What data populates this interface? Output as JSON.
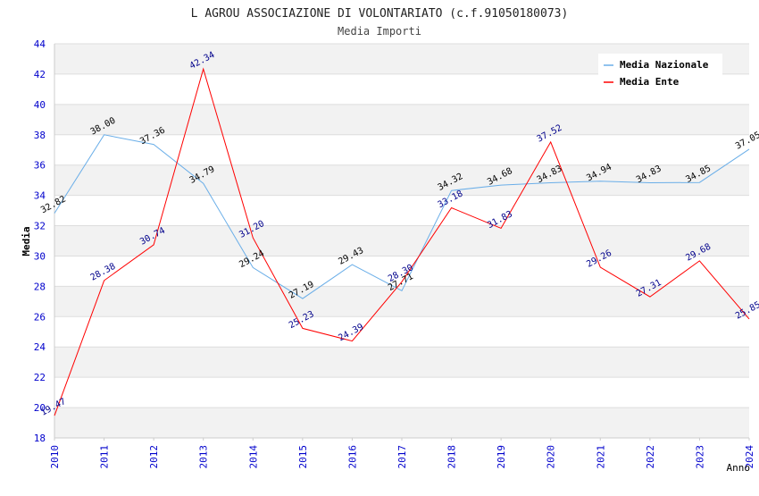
{
  "chart_data": {
    "type": "line",
    "title": "L AGROU ASSOCIAZIONE DI VOLONTARIATO (c.f.91050180073)",
    "subtitle": "Media Importi",
    "xlabel": "Anno",
    "ylabel": "Media",
    "ylim": [
      18,
      44
    ],
    "yticks": [
      18,
      20,
      22,
      24,
      26,
      28,
      30,
      32,
      34,
      36,
      38,
      40,
      42,
      44
    ],
    "categories": [
      "2010",
      "2011",
      "2012",
      "2013",
      "2014",
      "2015",
      "2016",
      "2017",
      "2018",
      "2019",
      "2020",
      "2021",
      "2022",
      "2023",
      "2024"
    ],
    "grid": true,
    "legend_position": "top-right",
    "series": [
      {
        "name": "Media Nazionale",
        "color": "#6aaee8",
        "label_color": "#000000",
        "values": [
          32.82,
          38.0,
          37.36,
          34.79,
          29.24,
          27.19,
          29.43,
          27.71,
          34.32,
          34.68,
          34.83,
          34.94,
          34.83,
          34.85,
          37.05
        ],
        "labels": [
          "32.82",
          "38.00",
          "37.36",
          "34.79",
          "29.24",
          "27.19",
          "29.43",
          "27.71",
          "34.32",
          "34.68",
          "34.83",
          "34.94",
          "34.83",
          "34.85",
          "37.05"
        ]
      },
      {
        "name": "Media Ente",
        "color": "#ff0000",
        "label_color": "#00008b",
        "values": [
          19.47,
          28.38,
          30.74,
          42.34,
          31.2,
          25.23,
          24.39,
          28.3,
          33.18,
          31.83,
          37.52,
          29.26,
          27.31,
          29.68,
          25.85
        ],
        "labels": [
          "19.47",
          "28.38",
          "30.74",
          "42.34",
          "31.20",
          "25.23",
          "24.39",
          "28.30",
          "33.18",
          "31.83",
          "37.52",
          "29.26",
          "27.31",
          "29.68",
          "25.85"
        ]
      }
    ]
  }
}
